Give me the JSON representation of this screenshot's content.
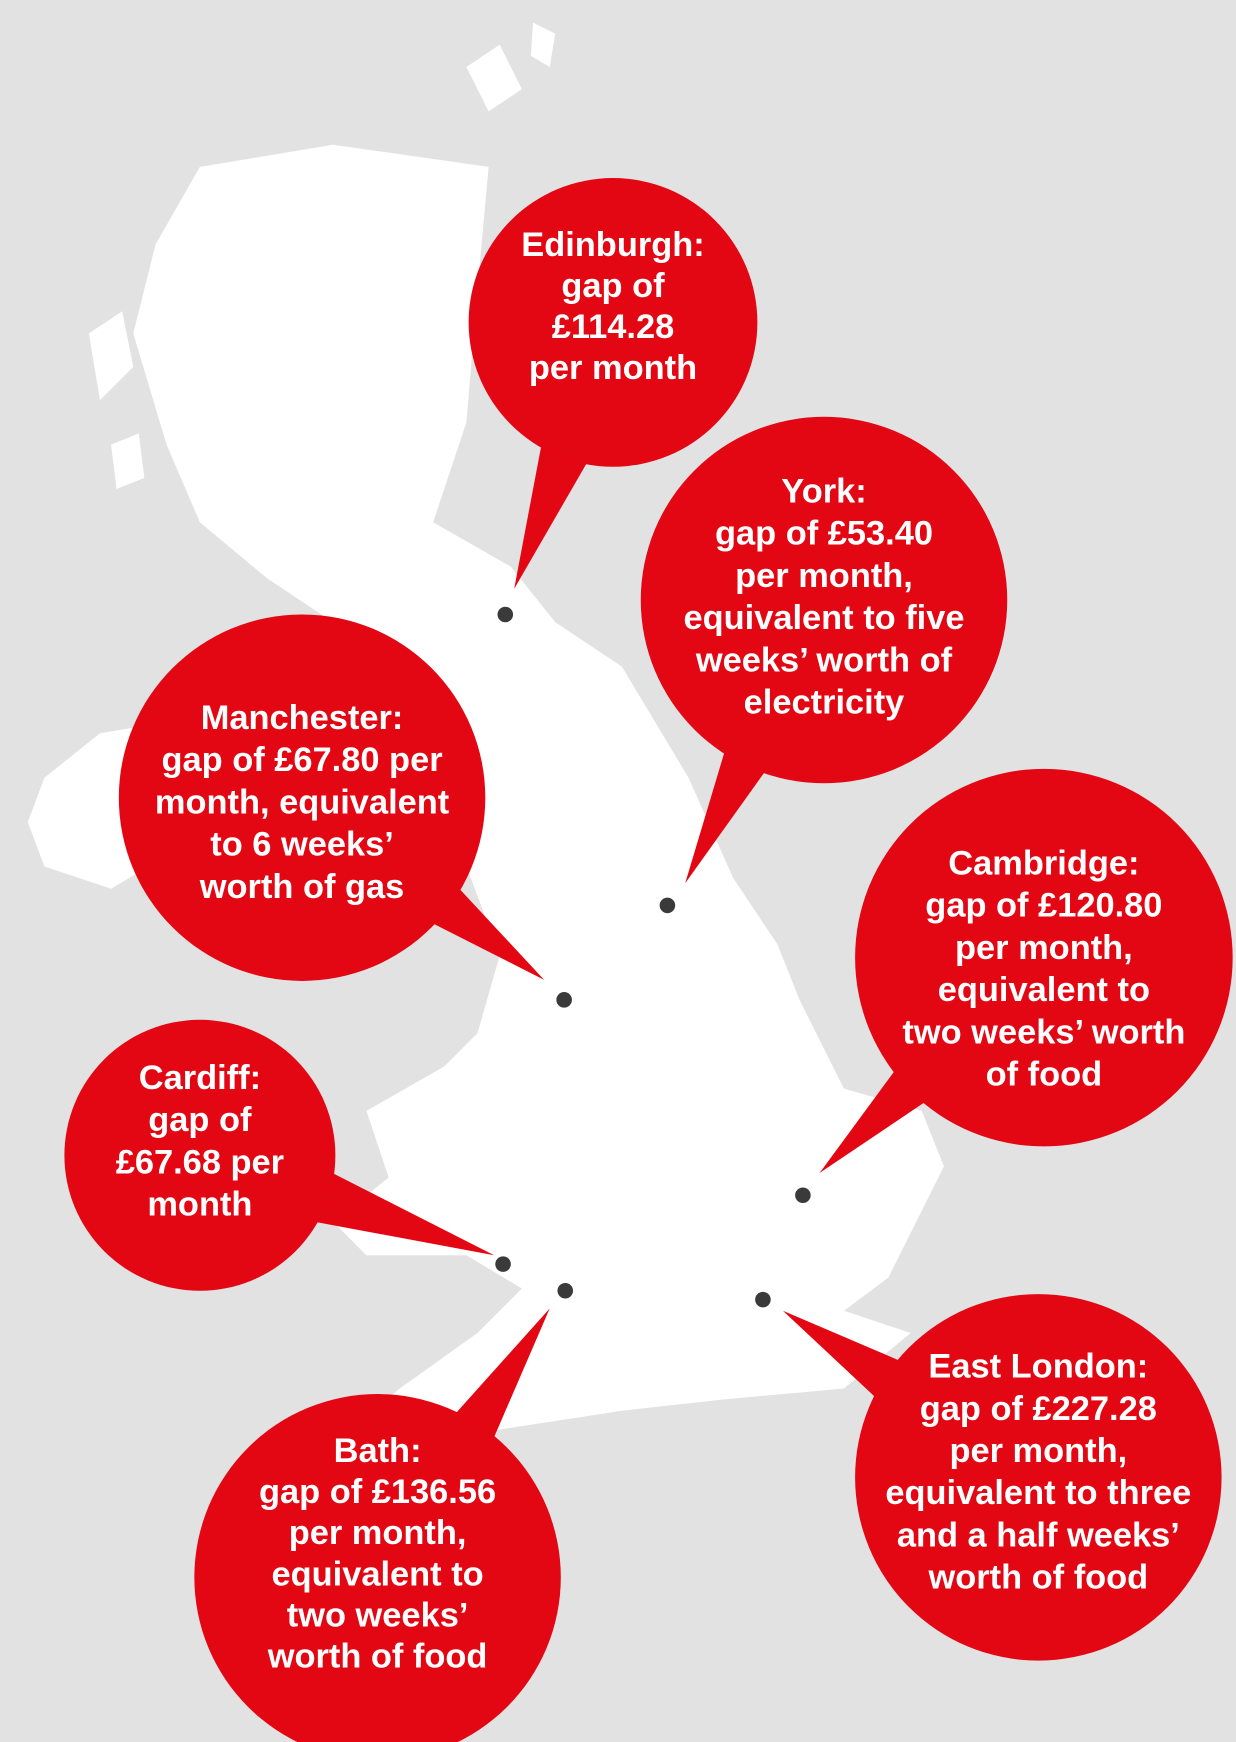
{
  "callouts": [
    {
      "lines": [
        "Edinburgh:",
        "gap of",
        "£114.28",
        "per month"
      ]
    },
    {
      "lines": [
        "York:",
        "gap of £53.40",
        "per month,",
        "equivalent to five",
        "weeks’ worth of",
        "electricity"
      ]
    },
    {
      "lines": [
        "Manchester:",
        "gap of £67.80 per",
        "month, equivalent",
        "to 6 weeks’",
        "worth of gas"
      ]
    },
    {
      "lines": [
        "Cambridge:",
        "gap of £120.80",
        "per month,",
        "equivalent to",
        "two weeks’ worth",
        "of food"
      ]
    },
    {
      "lines": [
        "Cardiff:",
        "gap of",
        "£67.68 per",
        "month"
      ]
    },
    {
      "lines": [
        "Bath:",
        "gap of £136.56",
        "per month,",
        "equivalent to",
        "two weeks’",
        "worth of food"
      ]
    },
    {
      "lines": [
        "East London:",
        "gap of £227.28",
        "per month,",
        "equivalent to three",
        "and a half weeks’",
        "worth of food"
      ]
    }
  ]
}
